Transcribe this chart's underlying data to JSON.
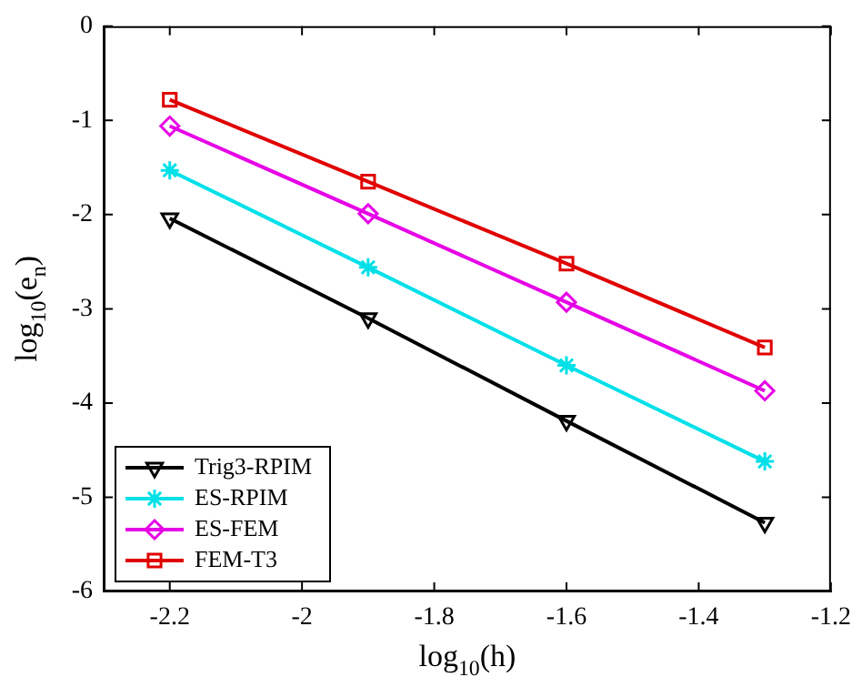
{
  "chart_data": {
    "type": "line",
    "xlabel": "log$_{10}$(h)",
    "ylabel": "log$_{10}$(e$_{n}$)",
    "x": [
      -2.2,
      -1.9,
      -1.6,
      -1.3
    ],
    "series": [
      {
        "name": "Trig3-RPIM",
        "color": "#000000",
        "marker": "triangle",
        "values": [
          -2.04,
          -3.1,
          -4.19,
          -5.27
        ]
      },
      {
        "name": "ES-RPIM",
        "color": "#00e0e8",
        "marker": "cross",
        "values": [
          -1.53,
          -2.56,
          -3.6,
          -4.62
        ]
      },
      {
        "name": "ES-FEM",
        "color": "#e600e6",
        "marker": "diamond",
        "values": [
          -1.06,
          -1.99,
          -2.93,
          -3.87
        ]
      },
      {
        "name": "FEM-T3",
        "color": "#e00000",
        "marker": "square",
        "values": [
          -0.78,
          -1.65,
          -2.52,
          -3.41
        ]
      }
    ],
    "xlim": [
      -2.3,
      -1.2
    ],
    "xticks": [
      -2.2,
      -2,
      -1.8,
      -1.6,
      -1.4,
      -1.2
    ],
    "ylim": [
      -6,
      0
    ],
    "yticks": [
      -6,
      -5,
      -4,
      -3,
      -2,
      -1,
      0
    ],
    "grid": false,
    "legend": "bottom left",
    "line_style": "solid"
  }
}
